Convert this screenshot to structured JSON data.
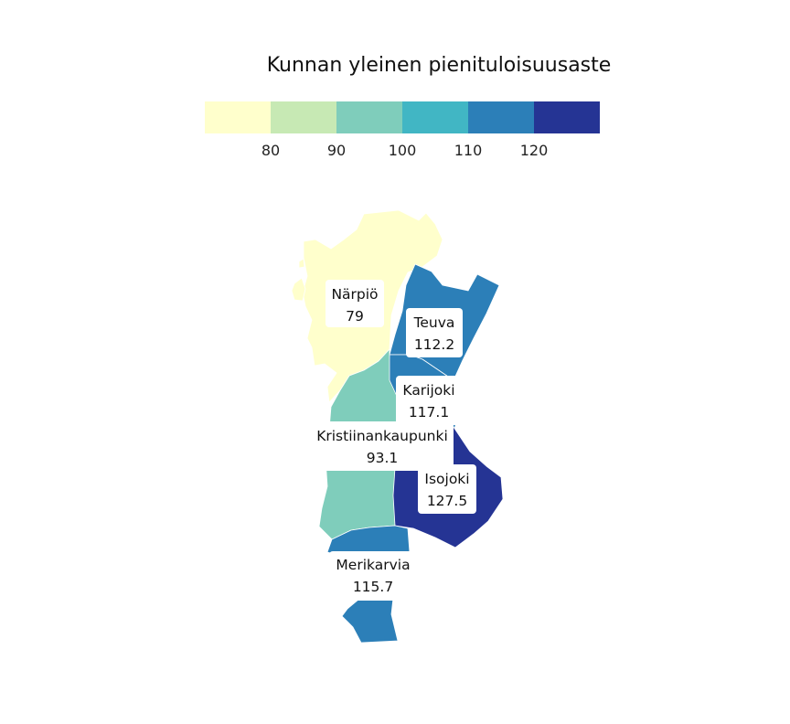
{
  "legend": {
    "title": "Kunnan yleinen pienituloisuusaste",
    "ticks": [
      "80",
      "90",
      "100",
      "110",
      "120"
    ],
    "bins": [
      {
        "range": "< 80",
        "color": "#ffffcc"
      },
      {
        "range": "80–90",
        "color": "#c7e9b4"
      },
      {
        "range": "90–100",
        "color": "#7fcdbb"
      },
      {
        "range": "100–110",
        "color": "#41b6c4"
      },
      {
        "range": "110–120",
        "color": "#2c7fb8"
      },
      {
        "range": "> 120",
        "color": "#253494"
      }
    ]
  },
  "municipalities": [
    {
      "name": "Närpiö",
      "value": "79",
      "color": "#ffffcc"
    },
    {
      "name": "Teuva",
      "value": "112.2",
      "color": "#2c7fb8"
    },
    {
      "name": "Karijoki",
      "value": "117.1",
      "color": "#2c7fb8"
    },
    {
      "name": "Kristiinankaupunki",
      "value": "93.1",
      "color": "#7fcdbb"
    },
    {
      "name": "Isojoki",
      "value": "127.5",
      "color": "#253494"
    },
    {
      "name": "Merikarvia",
      "value": "115.7",
      "color": "#2c7fb8"
    }
  ]
}
